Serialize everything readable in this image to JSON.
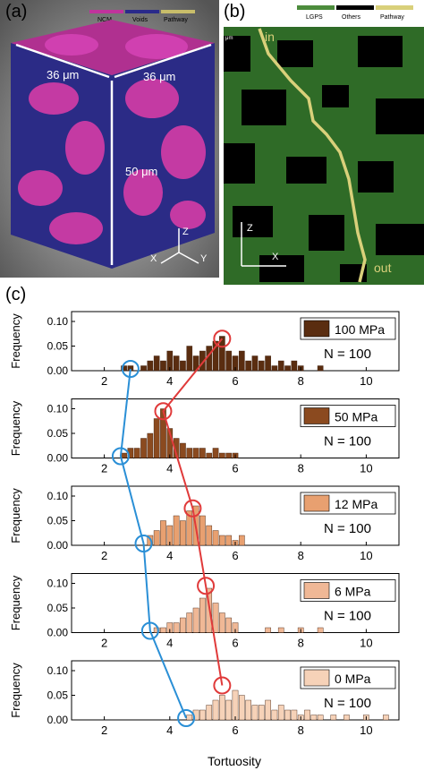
{
  "panel_a": {
    "label": "(a)",
    "legend": [
      {
        "name": "NCM",
        "color": "#c0339c"
      },
      {
        "name": "Voids",
        "color": "#2a2a8a"
      },
      {
        "name": "Pathway",
        "color": "#c8bd6a"
      }
    ],
    "dims": [
      "36 μm",
      "36 μm",
      "50 μm"
    ],
    "axes": [
      "Z",
      "X",
      "Y"
    ]
  },
  "panel_b": {
    "label": "(b)",
    "legend": [
      {
        "name": "LGPS",
        "color": "#4c8c3c"
      },
      {
        "name": "Others",
        "color": "#000000"
      },
      {
        "name": "Pathway",
        "color": "#d9d07a"
      }
    ],
    "in_label": "in",
    "out_label": "out",
    "scale_label": "μm",
    "axes": [
      "Z",
      "X"
    ]
  },
  "panel_c": {
    "label": "(c)",
    "xlabel": "Tortuosity",
    "ylabel": "Frequency"
  },
  "chart_data": {
    "type": "bar",
    "xlabel": "Tortuosity",
    "ylabel": "Frequency",
    "xlim": [
      1,
      11
    ],
    "ylim": [
      0,
      0.12
    ],
    "xticks": [
      2,
      4,
      6,
      8,
      10
    ],
    "yticks": [
      0.0,
      0.05,
      0.1
    ],
    "panels": [
      {
        "name": "100 MPa",
        "n_label": "N = 100",
        "color": "#5a2d10",
        "min_marker": [
          2.8,
          0.0
        ],
        "max_marker": [
          5.6,
          0.065
        ],
        "bins": [
          [
            2.6,
            0.01
          ],
          [
            2.8,
            0.01
          ],
          [
            3.2,
            0.01
          ],
          [
            3.4,
            0.02
          ],
          [
            3.6,
            0.03
          ],
          [
            3.8,
            0.02
          ],
          [
            4.0,
            0.04
          ],
          [
            4.2,
            0.03
          ],
          [
            4.4,
            0.02
          ],
          [
            4.6,
            0.05
          ],
          [
            4.8,
            0.03
          ],
          [
            5.0,
            0.04
          ],
          [
            5.2,
            0.05
          ],
          [
            5.4,
            0.06
          ],
          [
            5.6,
            0.07
          ],
          [
            5.8,
            0.04
          ],
          [
            6.0,
            0.03
          ],
          [
            6.2,
            0.04
          ],
          [
            6.4,
            0.02
          ],
          [
            6.6,
            0.03
          ],
          [
            6.8,
            0.02
          ],
          [
            7.0,
            0.03
          ],
          [
            7.2,
            0.01
          ],
          [
            7.4,
            0.02
          ],
          [
            7.6,
            0.01
          ],
          [
            7.8,
            0.02
          ],
          [
            8.0,
            0.01
          ],
          [
            8.6,
            0.01
          ]
        ]
      },
      {
        "name": "50 MPa",
        "n_label": "N = 100",
        "color": "#8b4a1f",
        "min_marker": [
          2.5,
          0.0
        ],
        "max_marker": [
          3.8,
          0.095
        ],
        "bins": [
          [
            2.6,
            0.01
          ],
          [
            2.8,
            0.02
          ],
          [
            3.0,
            0.02
          ],
          [
            3.2,
            0.04
          ],
          [
            3.4,
            0.05
          ],
          [
            3.6,
            0.08
          ],
          [
            3.8,
            0.1
          ],
          [
            4.0,
            0.06
          ],
          [
            4.2,
            0.04
          ],
          [
            4.4,
            0.03
          ],
          [
            4.6,
            0.02
          ],
          [
            4.8,
            0.02
          ],
          [
            5.0,
            0.02
          ],
          [
            5.2,
            0.01
          ],
          [
            5.4,
            0.02
          ],
          [
            5.6,
            0.01
          ],
          [
            5.8,
            0.01
          ],
          [
            6.0,
            0.01
          ]
        ]
      },
      {
        "name": "12 MPa",
        "n_label": "N = 100",
        "color": "#e8a070",
        "min_marker": [
          3.2,
          0.0
        ],
        "max_marker": [
          4.7,
          0.075
        ],
        "bins": [
          [
            3.4,
            0.02
          ],
          [
            3.6,
            0.03
          ],
          [
            3.8,
            0.05
          ],
          [
            4.0,
            0.04
          ],
          [
            4.2,
            0.06
          ],
          [
            4.4,
            0.05
          ],
          [
            4.6,
            0.07
          ],
          [
            4.8,
            0.08
          ],
          [
            5.0,
            0.06
          ],
          [
            5.2,
            0.04
          ],
          [
            5.4,
            0.03
          ],
          [
            5.6,
            0.02
          ],
          [
            5.8,
            0.02
          ],
          [
            6.0,
            0.01
          ],
          [
            6.2,
            0.02
          ]
        ]
      },
      {
        "name": "6 MPa",
        "n_label": "N = 100",
        "color": "#f0b896",
        "min_marker": [
          3.4,
          0.0
        ],
        "max_marker": [
          5.1,
          0.095
        ],
        "bins": [
          [
            3.6,
            0.01
          ],
          [
            3.8,
            0.01
          ],
          [
            4.0,
            0.02
          ],
          [
            4.2,
            0.02
          ],
          [
            4.4,
            0.03
          ],
          [
            4.6,
            0.04
          ],
          [
            4.8,
            0.05
          ],
          [
            5.0,
            0.07
          ],
          [
            5.2,
            0.09
          ],
          [
            5.4,
            0.06
          ],
          [
            5.6,
            0.04
          ],
          [
            5.8,
            0.03
          ],
          [
            6.0,
            0.02
          ],
          [
            7.0,
            0.01
          ],
          [
            7.4,
            0.01
          ],
          [
            8.0,
            0.01
          ],
          [
            8.6,
            0.01
          ]
        ]
      },
      {
        "name": "0 MPa",
        "n_label": "N = 100",
        "color": "#f6d2b8",
        "min_marker": [
          4.5,
          0.0
        ],
        "max_marker": [
          5.6,
          0.07
        ],
        "bins": [
          [
            4.6,
            0.01
          ],
          [
            4.8,
            0.02
          ],
          [
            5.0,
            0.02
          ],
          [
            5.2,
            0.03
          ],
          [
            5.4,
            0.04
          ],
          [
            5.6,
            0.05
          ],
          [
            5.8,
            0.04
          ],
          [
            6.0,
            0.06
          ],
          [
            6.2,
            0.05
          ],
          [
            6.4,
            0.04
          ],
          [
            6.6,
            0.03
          ],
          [
            6.8,
            0.03
          ],
          [
            7.0,
            0.04
          ],
          [
            7.2,
            0.02
          ],
          [
            7.4,
            0.03
          ],
          [
            7.6,
            0.02
          ],
          [
            7.8,
            0.02
          ],
          [
            8.0,
            0.01
          ],
          [
            8.2,
            0.02
          ],
          [
            8.4,
            0.01
          ],
          [
            8.6,
            0.01
          ],
          [
            9.0,
            0.01
          ],
          [
            9.4,
            0.01
          ],
          [
            10.0,
            0.01
          ],
          [
            10.6,
            0.01
          ]
        ]
      }
    ],
    "min_line_color": "#2a8fd6",
    "max_line_color": "#e03a3a"
  }
}
